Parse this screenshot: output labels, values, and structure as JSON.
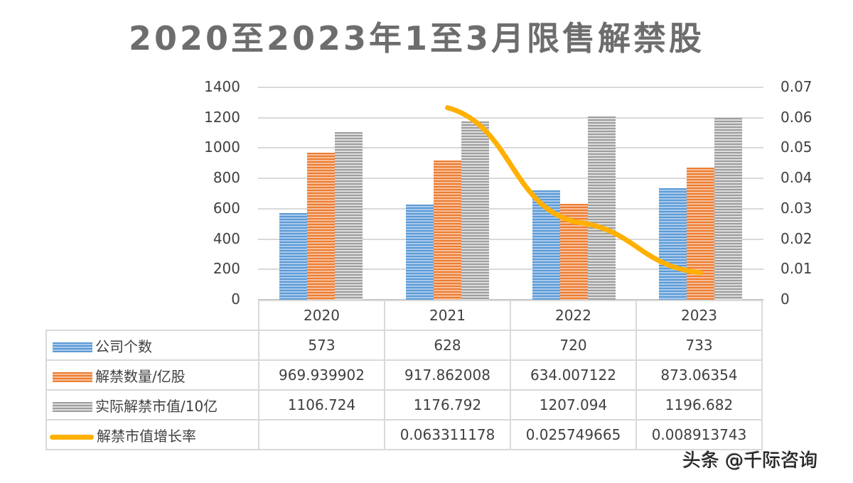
{
  "title": "2020至2023年1至3月限售解禁股",
  "watermark": "头条 @千际咨询",
  "y_left_ticks": [
    "1400",
    "1200",
    "1000",
    "800",
    "600",
    "400",
    "200",
    "0"
  ],
  "y_right_ticks": [
    "0.07",
    "0.06",
    "0.05",
    "0.04",
    "0.03",
    "0.02",
    "0.01",
    "0"
  ],
  "table": {
    "years": [
      "2020",
      "2021",
      "2022",
      "2023"
    ],
    "rows": [
      {
        "label": "公司个数",
        "swatch": "blue",
        "values": [
          "573",
          "628",
          "720",
          "733"
        ]
      },
      {
        "label": "解禁数量/亿股",
        "swatch": "orange",
        "values": [
          "969.939902",
          "917.862008",
          "634.007122",
          "873.06354"
        ]
      },
      {
        "label": "实际解禁市值/10亿",
        "swatch": "gray",
        "values": [
          "1106.724",
          "1176.792",
          "1207.094",
          "1196.682"
        ]
      },
      {
        "label": "解禁市值增长率",
        "swatch": "line",
        "values": [
          "",
          "0.063311178",
          "0.025749665",
          "0.008913743"
        ]
      }
    ]
  },
  "colors": {
    "blue": "#5b9bd5",
    "orange": "#ed7d31",
    "gray": "#a5a5a5",
    "line": "#ffb000",
    "grid": "#d9d9d9"
  },
  "chart_data": {
    "type": "bar",
    "title": "2020至2023年1至3月限售解禁股",
    "categories": [
      "2020",
      "2021",
      "2022",
      "2023"
    ],
    "series": [
      {
        "name": "公司个数",
        "type": "bar",
        "axis": "left",
        "values": [
          573,
          628,
          720,
          733
        ]
      },
      {
        "name": "解禁数量/亿股",
        "type": "bar",
        "axis": "left",
        "values": [
          969.939902,
          917.862008,
          634.007122,
          873.06354
        ]
      },
      {
        "name": "实际解禁市值/10亿",
        "type": "bar",
        "axis": "left",
        "values": [
          1106.724,
          1176.792,
          1207.094,
          1196.682
        ]
      },
      {
        "name": "解禁市值增长率",
        "type": "line",
        "axis": "right",
        "values": [
          null,
          0.063311178,
          0.025749665,
          0.008913743
        ]
      }
    ],
    "ylim": [
      0,
      1400
    ],
    "y2lim": [
      0,
      0.07
    ],
    "xlabel": "",
    "ylabel": "",
    "y2label": "",
    "grid": true,
    "legend_position": "data-table"
  }
}
